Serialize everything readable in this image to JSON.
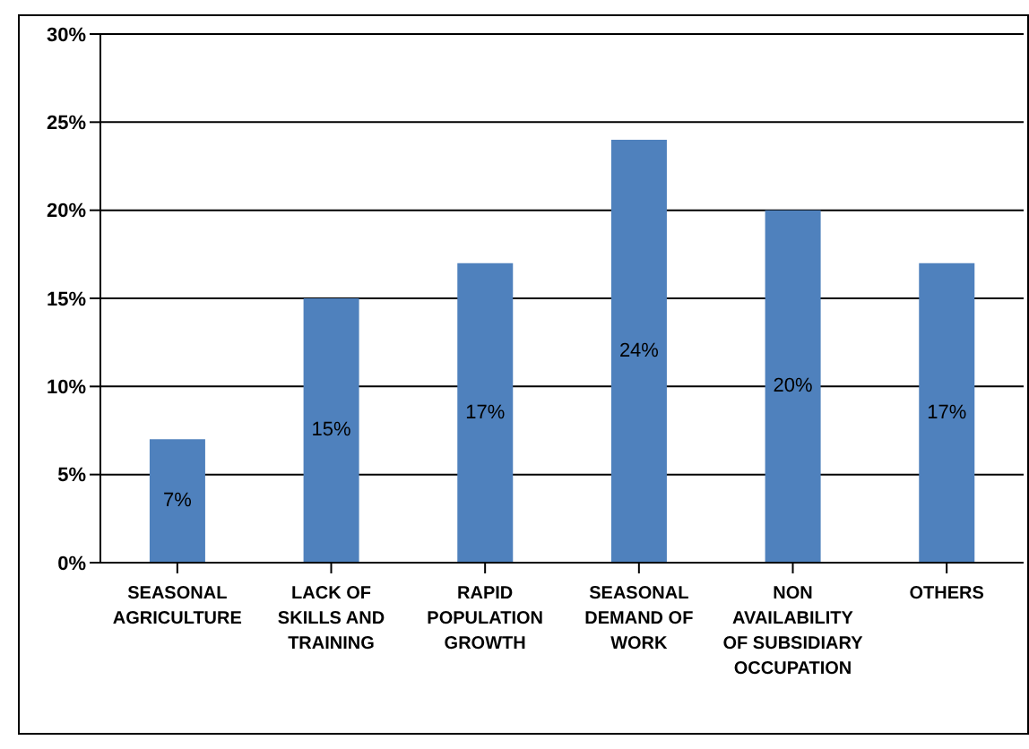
{
  "chart_data": {
    "type": "bar",
    "categories": [
      "SEASONAL AGRICULTURE",
      "LACK OF SKILLS AND TRAINING",
      "RAPID POPULATION GROWTH",
      "SEASONAL DEMAND OF WORK",
      "NON AVAILABILITY OF SUBSIDIARY OCCUPATION",
      "OTHERS"
    ],
    "values": [
      7,
      15,
      17,
      24,
      20,
      17
    ],
    "value_labels": [
      "7%",
      "15%",
      "17%",
      "24%",
      "20%",
      "17%"
    ],
    "color": "#4f81bd",
    "ylim": [
      0,
      30
    ],
    "yticks": [
      {
        "value": 0,
        "label": "0%"
      },
      {
        "value": 5,
        "label": "5%"
      },
      {
        "value": 10,
        "label": "10%"
      },
      {
        "value": 15,
        "label": "15%"
      },
      {
        "value": 20,
        "label": "20%"
      },
      {
        "value": 25,
        "label": "25%"
      },
      {
        "value": 30,
        "label": "30%"
      }
    ],
    "grid": "y",
    "legend": false
  }
}
